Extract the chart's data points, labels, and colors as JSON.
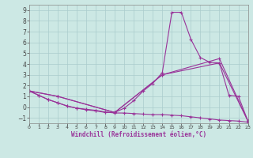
{
  "xlabel": "Windchill (Refroidissement éolien,°C)",
  "background_color": "#cce8e4",
  "grid_color": "#aacccc",
  "line_color": "#993399",
  "xlim": [
    0,
    23
  ],
  "ylim": [
    -1.5,
    9.5
  ],
  "xticks": [
    0,
    1,
    2,
    3,
    4,
    5,
    6,
    7,
    8,
    9,
    10,
    11,
    12,
    13,
    14,
    15,
    16,
    17,
    18,
    19,
    20,
    21,
    22,
    23
  ],
  "yticks": [
    -1,
    0,
    1,
    2,
    3,
    4,
    5,
    6,
    7,
    8,
    9
  ],
  "curves": [
    {
      "x": [
        0,
        1,
        2,
        3,
        4,
        5,
        6,
        7,
        8,
        9,
        10,
        11,
        12,
        13,
        14,
        15,
        16,
        17,
        18,
        19,
        20,
        21,
        22,
        23
      ],
      "y": [
        1.5,
        1.1,
        0.7,
        0.4,
        0.1,
        -0.1,
        -0.2,
        -0.3,
        -0.45,
        -0.55,
        -0.55,
        -0.6,
        -0.65,
        -0.7,
        -0.7,
        -0.75,
        -0.8,
        -0.9,
        -1.0,
        -1.1,
        -1.2,
        -1.25,
        -1.3,
        -1.4
      ]
    },
    {
      "x": [
        0,
        1,
        2,
        3,
        4,
        5,
        6,
        7,
        8,
        9,
        10,
        11,
        12,
        13,
        14,
        15,
        16,
        17,
        18,
        19,
        20,
        21,
        22,
        23
      ],
      "y": [
        1.5,
        1.1,
        0.7,
        0.4,
        0.1,
        -0.1,
        -0.25,
        -0.35,
        -0.5,
        -0.5,
        -0.1,
        0.6,
        1.5,
        2.2,
        3.2,
        8.8,
        8.8,
        6.3,
        4.6,
        4.15,
        4.1,
        1.1,
        1.0,
        -1.3
      ]
    },
    {
      "comment": "diagonal straight line from (0,1.5) to (20,4.5) to (23,-1.3)",
      "x": [
        0,
        3,
        9,
        14,
        20,
        23
      ],
      "y": [
        1.5,
        1.0,
        -0.5,
        3.0,
        4.5,
        -1.3
      ]
    },
    {
      "x": [
        0,
        3,
        9,
        14,
        20,
        23
      ],
      "y": [
        1.5,
        1.0,
        -0.5,
        3.0,
        4.1,
        -1.3
      ]
    }
  ]
}
